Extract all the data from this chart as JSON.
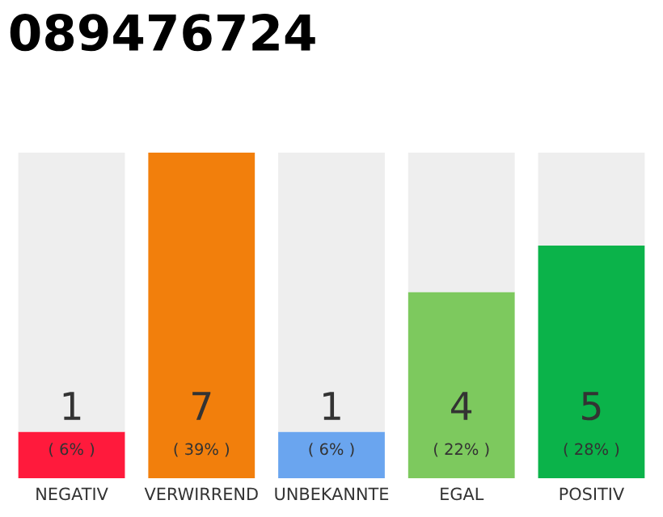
{
  "chart_data": {
    "type": "bar",
    "title": "089476724",
    "stacked": true,
    "categories": [
      "NEGATIV",
      "VERWIRREND",
      "UNBEKANNTE",
      "EGAL",
      "POSITIV"
    ],
    "series": [
      {
        "colors": [
          "#ff1a3c",
          "#f27f0c",
          "#6aa5ef",
          "#7dc95e",
          "#0bb34a"
        ],
        "values": [
          1,
          7,
          1,
          4,
          5
        ],
        "value_labels": [
          "1",
          "7",
          "1",
          "4",
          "5"
        ]
      },
      {
        "color": "#eeeeee",
        "values": [
          6,
          0,
          6,
          3,
          2
        ]
      }
    ],
    "annotations": [
      {
        "text": "( 6% )",
        "x": "NEGATIV",
        "y": 0
      },
      {
        "text": "( 39% )",
        "x": "VERWIRREND",
        "y": 0
      },
      {
        "text": "( 6% )",
        "x": "UNBEKANNTE",
        "y": 0
      },
      {
        "text": "( 22% )",
        "x": "EGAL",
        "y": 0
      },
      {
        "text": "( 28% )",
        "x": "POSITIV",
        "y": 0
      }
    ]
  }
}
